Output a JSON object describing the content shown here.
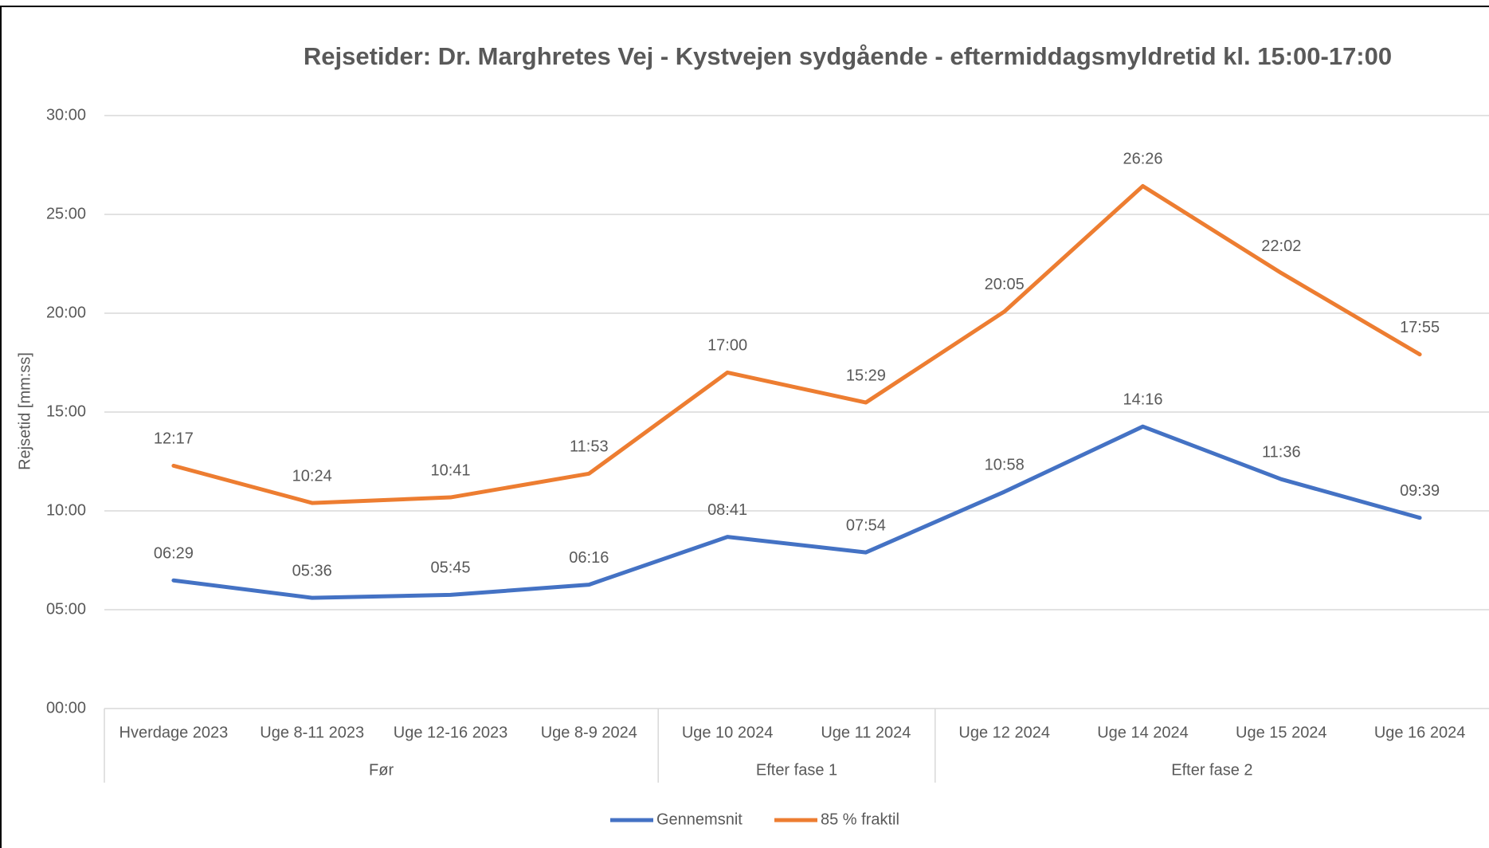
{
  "chart_data": {
    "type": "line",
    "title": "Rejsetider: Dr. Marghretes Vej - Kystvejen sydgående - eftermiddagsmyldretid kl. 15:00-17:00",
    "y_axis_label": "Rejsetid [mm:ss]",
    "categories": [
      "Hverdage 2023",
      "Uge 8-11 2023",
      "Uge 12-16 2023",
      "Uge 8-9 2024",
      "Uge 10 2024",
      "Uge 11 2024",
      "Uge 12 2024",
      "Uge 14 2024",
      "Uge 15 2024",
      "Uge 16 2024"
    ],
    "groups": [
      {
        "label": "Før",
        "count": 4
      },
      {
        "label": "Efter fase 1",
        "count": 2
      },
      {
        "label": "Efter fase 2",
        "count": 4
      }
    ],
    "series": [
      {
        "name": "Gennemsnit",
        "color": "#4472c4",
        "values": [
          389,
          336,
          345,
          376,
          521,
          474,
          658,
          856,
          696,
          579
        ],
        "value_labels": [
          "06:29",
          "05:36",
          "05:45",
          "06:16",
          "08:41",
          "07:54",
          "10:58",
          "14:16",
          "11:36",
          "09:39"
        ]
      },
      {
        "name": "85 % fraktil",
        "color": "#ed7d31",
        "values": [
          737,
          624,
          641,
          713,
          1020,
          929,
          1205,
          1586,
          1322,
          1075
        ],
        "value_labels": [
          "12:17",
          "10:24",
          "10:41",
          "11:53",
          "17:00",
          "15:29",
          "20:05",
          "26:26",
          "22:02",
          "17:55"
        ]
      }
    ],
    "ylim": [
      0,
      1800
    ],
    "yticks": [
      {
        "value": 0,
        "label": "00:00"
      },
      {
        "value": 300,
        "label": "05:00"
      },
      {
        "value": 600,
        "label": "10:00"
      },
      {
        "value": 900,
        "label": "15:00"
      },
      {
        "value": 1200,
        "label": "20:00"
      },
      {
        "value": 1500,
        "label": "25:00"
      },
      {
        "value": 1800,
        "label": "30:00"
      }
    ],
    "grid": true,
    "legend": "bottom"
  }
}
